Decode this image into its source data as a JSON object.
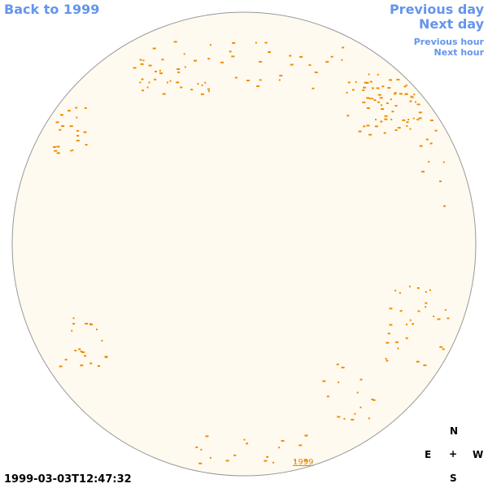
{
  "navigation": {
    "back": "Back to 1999",
    "previous_day": "Previous day",
    "next_day": "Next day",
    "previous_hour": "Previous hour",
    "next_hour": "Next hour"
  },
  "image": {
    "year_link": "1999"
  },
  "timestamp": "1999-03-03T12:47:32",
  "compass": {
    "north": "N",
    "east": "E",
    "center": "+",
    "west": "W",
    "south": "S"
  }
}
